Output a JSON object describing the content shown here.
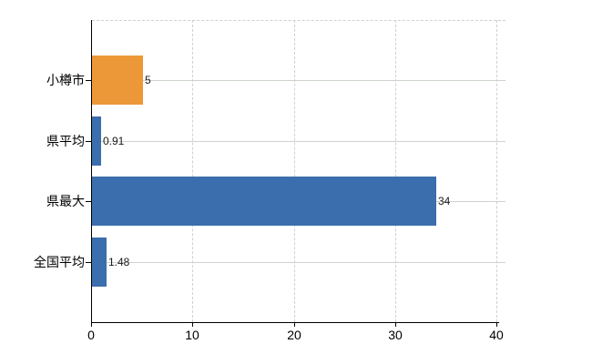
{
  "chart_data": {
    "type": "bar",
    "orientation": "horizontal",
    "title": "",
    "categories": [
      "小樽市",
      "県平均",
      "県最大",
      "全国平均"
    ],
    "values": [
      5,
      0.91,
      34,
      1.48
    ],
    "value_labels": [
      "5",
      "0.91",
      "34",
      "1.48"
    ],
    "bar_colors": [
      "#ec9838",
      "#3b6eac",
      "#3b6eac",
      "#3b6eac"
    ],
    "xlim": [
      0,
      40
    ],
    "x_ticks": [
      0,
      10,
      20,
      30,
      40
    ],
    "x_tick_labels": [
      "0",
      "10",
      "20",
      "30",
      "40"
    ],
    "xlabel": "",
    "ylabel": "",
    "grid": {
      "vertical_style": "dashed",
      "horizontal_style": "solid",
      "top_border_style": "dashed"
    },
    "colors": {
      "background": "#ffffff",
      "axis": "#000000",
      "grid_horizontal": "#ccd4ca",
      "grid_vertical": "#d5cdd2",
      "tick_label": "#000000",
      "category_label": "#000000",
      "value_label": "#1a1a1a"
    }
  }
}
